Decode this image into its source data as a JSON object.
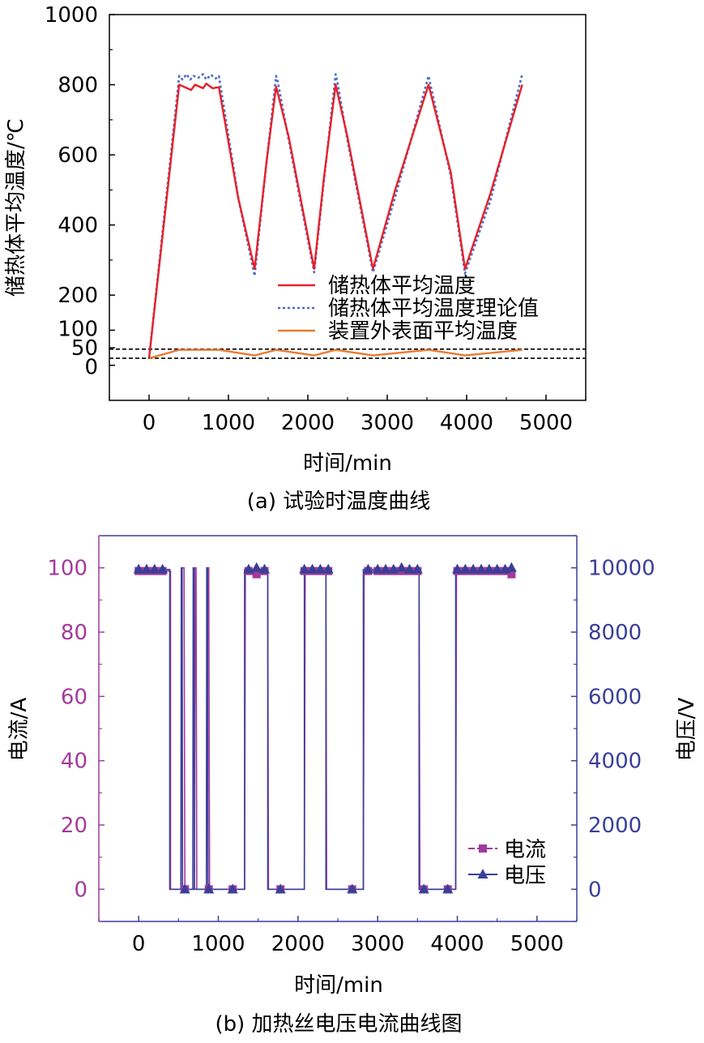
{
  "colors": {
    "red": "#e8202a",
    "blue_dotted": "#4a6fc1",
    "orange": "#ea7a2e",
    "purple": "#a23a9c",
    "navy": "#3a3f98",
    "axis": "#000000"
  },
  "chart_data": [
    {
      "type": "line",
      "caption": "(a) 试验时温度曲线",
      "xlabel": "时间/min",
      "ylabel": "储热体平均温度/℃",
      "xlim": [
        -500,
        5500
      ],
      "ylim": [
        -100,
        1000
      ],
      "xticks": [
        "0",
        "1000",
        "2000",
        "3000",
        "4000",
        "5000"
      ],
      "xtick_values": [
        0,
        1000,
        2000,
        3000,
        4000,
        5000
      ],
      "yticks": [
        "0",
        "50",
        "100",
        "200",
        "400",
        "600",
        "800",
        "1000"
      ],
      "ytick_values": [
        0,
        50,
        100,
        200,
        400,
        600,
        800,
        1000
      ],
      "legend_position": "lower-right",
      "reference_lines": [
        20,
        46
      ],
      "series": [
        {
          "name": "储热体平均温度",
          "style": "solid",
          "color": "red",
          "x": [
            0,
            380,
            530,
            580,
            680,
            720,
            800,
            880,
            1120,
            1330,
            1480,
            1600,
            1760,
            2080,
            2200,
            2350,
            2500,
            2820,
            3100,
            3520,
            3800,
            3980,
            4300,
            4700
          ],
          "y": [
            20,
            800,
            785,
            800,
            790,
            803,
            790,
            793,
            480,
            275,
            580,
            795,
            650,
            275,
            530,
            800,
            650,
            275,
            500,
            800,
            550,
            275,
            490,
            800
          ]
        },
        {
          "name": "储热体平均温度理论值",
          "style": "dotted",
          "color": "blue_dotted",
          "x": [
            0,
            380,
            420,
            470,
            520,
            560,
            620,
            680,
            720,
            780,
            840,
            880,
            1130,
            1330,
            1470,
            1600,
            1620,
            1760,
            2080,
            2200,
            2350,
            2370,
            2500,
            2820,
            3100,
            3520,
            3540,
            3800,
            3980,
            4300,
            4700
          ],
          "y": [
            20,
            825,
            815,
            830,
            815,
            825,
            820,
            830,
            815,
            828,
            818,
            825,
            470,
            255,
            560,
            825,
            810,
            640,
            265,
            520,
            830,
            810,
            640,
            265,
            480,
            825,
            805,
            540,
            262,
            470,
            830
          ]
        },
        {
          "name": "装置外表面平均温度",
          "style": "solid",
          "color": "orange",
          "x": [
            0,
            380,
            880,
            1330,
            1600,
            2080,
            2350,
            2820,
            3520,
            3980,
            4700
          ],
          "y": [
            20,
            44,
            44,
            28,
            44,
            28,
            44,
            28,
            44,
            28,
            44
          ]
        }
      ]
    },
    {
      "type": "line",
      "caption": "(b) 加热丝电压电流曲线图",
      "xlabel": "时间/min",
      "ylabel_left": "电流/A",
      "ylabel_right": "电压/V",
      "xlim": [
        -500,
        5500
      ],
      "ylim_left": [
        -10,
        110
      ],
      "ylim_right": [
        -1000,
        11000
      ],
      "xticks": [
        "0",
        "1000",
        "2000",
        "3000",
        "4000",
        "5000"
      ],
      "xtick_values": [
        0,
        1000,
        2000,
        3000,
        4000,
        5000
      ],
      "yticks_left": [
        "0",
        "20",
        "40",
        "60",
        "80",
        "100"
      ],
      "ytick_values_left": [
        0,
        20,
        40,
        60,
        80,
        100
      ],
      "yticks_right": [
        "0",
        "2000",
        "4000",
        "6000",
        "8000",
        "10000"
      ],
      "ytick_values_right": [
        0,
        2000,
        4000,
        6000,
        8000,
        10000
      ],
      "legend_position": "lower-right",
      "series": [
        {
          "name": "电流",
          "axis": "left",
          "marker": "square",
          "color": "purple",
          "x": [
            0,
            380,
            400,
            400,
            530,
            540,
            570,
            580,
            700,
            710,
            720,
            730,
            850,
            860,
            880,
            890,
            1330,
            1340,
            1620,
            1630,
            2080,
            2090,
            2350,
            2360,
            2820,
            2830,
            3520,
            3530,
            3980,
            3990,
            4700
          ],
          "y": [
            99,
            99,
            99,
            0,
            0,
            100,
            100,
            0,
            0,
            100,
            100,
            0,
            0,
            100,
            100,
            0,
            0,
            99,
            99,
            0,
            0,
            99,
            99,
            0,
            0,
            99,
            99,
            0,
            0,
            99,
            99
          ],
          "marker_x": [
            0,
            100,
            200,
            300,
            580,
            880,
            1180,
            1380,
            1480,
            1580,
            1780,
            2080,
            2180,
            2280,
            2380,
            2680,
            2880,
            3000,
            3100,
            3200,
            3300,
            3400,
            3500,
            3580,
            3880,
            4000,
            4100,
            4200,
            4300,
            4400,
            4500,
            4600,
            4680
          ],
          "marker_y": [
            99,
            99,
            99,
            99,
            0,
            0,
            0,
            99,
            98,
            99,
            0,
            99,
            99,
            99,
            99,
            0,
            99,
            99,
            99,
            99,
            99,
            99,
            99,
            0,
            0,
            99,
            99,
            99,
            99,
            99,
            99,
            99,
            98
          ]
        },
        {
          "name": "电压",
          "axis": "right",
          "marker": "triangle",
          "color": "navy",
          "x": [
            0,
            390,
            390,
            530,
            535,
            545,
            550,
            680,
            685,
            695,
            700,
            850,
            855,
            865,
            870,
            1330,
            1330,
            1620,
            1620,
            2080,
            2080,
            2350,
            2350,
            2820,
            2820,
            3520,
            3520,
            3980,
            3980,
            4700
          ],
          "y": [
            9950,
            9950,
            0,
            0,
            10000,
            10000,
            0,
            0,
            10000,
            10000,
            0,
            0,
            10000,
            10000,
            0,
            0,
            9950,
            9950,
            0,
            0,
            9950,
            9950,
            0,
            0,
            9950,
            9950,
            0,
            0,
            9950,
            9950
          ],
          "marker_x": [
            0,
            100,
            200,
            300,
            580,
            880,
            1180,
            1380,
            1480,
            1580,
            1780,
            2080,
            2180,
            2280,
            2380,
            2680,
            2880,
            3000,
            3100,
            3200,
            3300,
            3400,
            3500,
            3580,
            3880,
            4000,
            4100,
            4200,
            4300,
            4400,
            4500,
            4600,
            4680
          ],
          "marker_y": [
            9950,
            9950,
            9950,
            9950,
            0,
            0,
            0,
            9950,
            10000,
            9950,
            0,
            9950,
            9950,
            9950,
            9950,
            0,
            9950,
            9950,
            9950,
            9950,
            10000,
            9950,
            9950,
            0,
            0,
            9950,
            9950,
            9950,
            9950,
            9950,
            9950,
            9950,
            10000
          ]
        }
      ]
    }
  ]
}
